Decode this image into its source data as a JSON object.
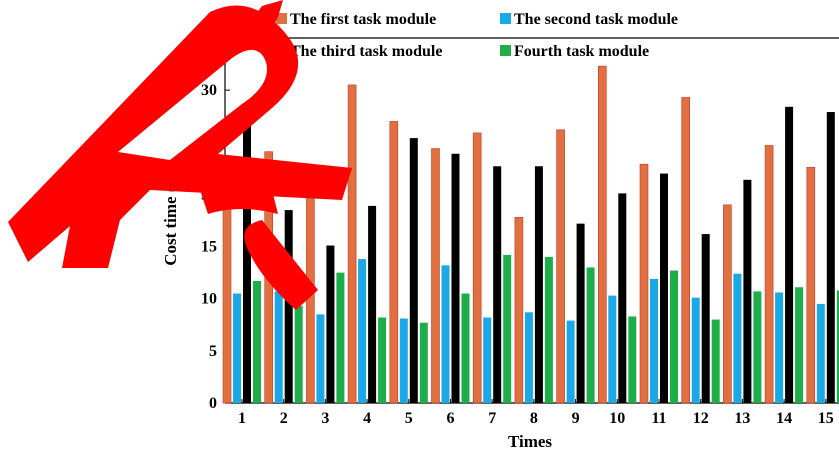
{
  "chart_data": {
    "type": "bar",
    "title": "",
    "xlabel": "Times",
    "ylabel": "Cost time (s)",
    "ylim": [
      0,
      35
    ],
    "yticks": [
      0,
      5,
      10,
      15,
      20,
      25,
      30,
      35
    ],
    "categories": [
      "1",
      "2",
      "3",
      "4",
      "5",
      "6",
      "7",
      "8",
      "9",
      "10",
      "11",
      "12",
      "13",
      "14",
      "15"
    ],
    "legend_position": "top",
    "series": [
      {
        "name": "The first task module",
        "color": "#e0703f",
        "values": [
          23.0,
          24.1,
          20.3,
          30.5,
          27.0,
          24.4,
          25.9,
          17.8,
          26.2,
          32.3,
          22.9,
          29.3,
          19.0,
          24.7,
          22.6
        ]
      },
      {
        "name": "The second task module",
        "color": "#1aa8e6",
        "values": [
          10.5,
          10.7,
          8.5,
          13.8,
          8.1,
          13.2,
          8.2,
          8.7,
          7.9,
          10.3,
          11.9,
          10.1,
          12.4,
          10.6,
          9.5
        ]
      },
      {
        "name": "The third task module",
        "color": "#000000",
        "values": [
          28.5,
          18.5,
          15.1,
          18.9,
          25.4,
          23.9,
          22.7,
          22.7,
          17.2,
          20.1,
          22.0,
          16.2,
          21.4,
          28.4,
          27.9
        ]
      },
      {
        "name": "Fourth task module",
        "color": "#1dae4a",
        "values": [
          11.7,
          9.3,
          12.5,
          8.2,
          7.7,
          10.5,
          14.2,
          14.0,
          13.0,
          8.3,
          12.7,
          8.0,
          10.7,
          11.1,
          10.8
        ]
      }
    ]
  }
}
